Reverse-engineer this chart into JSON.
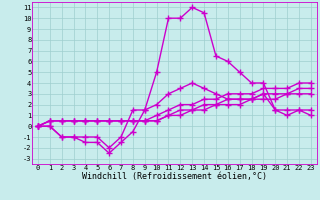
{
  "title": "",
  "xlabel": "Windchill (Refroidissement éolien,°C)",
  "xlim": [
    -0.5,
    23.5
  ],
  "ylim": [
    -3.5,
    11.5
  ],
  "xtick_vals": [
    0,
    1,
    2,
    3,
    4,
    5,
    6,
    7,
    8,
    9,
    10,
    11,
    12,
    13,
    14,
    15,
    16,
    17,
    18,
    19,
    20,
    21,
    22,
    23
  ],
  "ytick_vals": [
    11,
    10,
    9,
    8,
    7,
    6,
    5,
    4,
    3,
    2,
    1,
    0,
    -1,
    -2,
    -3
  ],
  "background_color": "#c8ecec",
  "grid_color": "#9fcfcf",
  "line_color": "#cc00cc",
  "line_width": 1.0,
  "marker": "+",
  "marker_size": 4,
  "marker_edge_width": 1.0,
  "curves": [
    {
      "x": [
        0,
        1,
        2,
        3,
        4,
        5,
        6,
        7,
        8,
        9,
        10,
        11,
        12,
        13,
        14,
        15,
        16,
        17,
        18,
        19,
        20,
        21,
        22,
        23
      ],
      "y": [
        0,
        0,
        -1,
        -1,
        -1.5,
        -1.5,
        -2.5,
        -1.5,
        -0.5,
        1.5,
        5,
        10,
        10,
        11,
        10.5,
        6.5,
        6,
        5,
        4,
        4,
        1.5,
        1,
        1.5,
        1
      ]
    },
    {
      "x": [
        0,
        1,
        2,
        3,
        4,
        5,
        6,
        7,
        8,
        9,
        10,
        11,
        12,
        13,
        14,
        15,
        16,
        17,
        18,
        19,
        20,
        21,
        22,
        23
      ],
      "y": [
        0,
        0,
        -1,
        -1,
        -1,
        -1,
        -2,
        -1,
        1.5,
        1.5,
        2,
        3,
        3.5,
        4,
        3.5,
        3,
        2.5,
        2.5,
        2.5,
        3,
        1.5,
        1.5,
        1.5,
        1.5
      ]
    },
    {
      "x": [
        0,
        1,
        2,
        3,
        4,
        5,
        6,
        7,
        8,
        9,
        10,
        11,
        12,
        13,
        14,
        15,
        16,
        17,
        18,
        19,
        20,
        21,
        22,
        23
      ],
      "y": [
        0,
        0.5,
        0.5,
        0.5,
        0.5,
        0.5,
        0.5,
        0.5,
        0.5,
        0.5,
        1,
        1.5,
        2,
        2,
        2.5,
        2.5,
        3,
        3,
        3,
        3.5,
        3.5,
        3.5,
        4,
        4
      ]
    },
    {
      "x": [
        0,
        1,
        2,
        3,
        4,
        5,
        6,
        7,
        8,
        9,
        10,
        11,
        12,
        13,
        14,
        15,
        16,
        17,
        18,
        19,
        20,
        21,
        22,
        23
      ],
      "y": [
        0,
        0.5,
        0.5,
        0.5,
        0.5,
        0.5,
        0.5,
        0.5,
        0.5,
        0.5,
        0.5,
        1,
        1.5,
        1.5,
        2,
        2,
        2.5,
        2.5,
        2.5,
        3,
        3,
        3,
        3.5,
        3.5
      ]
    },
    {
      "x": [
        0,
        1,
        2,
        3,
        4,
        5,
        6,
        7,
        8,
        9,
        10,
        11,
        12,
        13,
        14,
        15,
        16,
        17,
        18,
        19,
        20,
        21,
        22,
        23
      ],
      "y": [
        0,
        0.5,
        0.5,
        0.5,
        0.5,
        0.5,
        0.5,
        0.5,
        0.5,
        0.5,
        0.5,
        1,
        1,
        1.5,
        1.5,
        2,
        2,
        2,
        2.5,
        2.5,
        2.5,
        3,
        3,
        3
      ]
    }
  ],
  "tick_fontsize": 5.0,
  "label_fontsize": 6.0,
  "font_family": "monospace"
}
